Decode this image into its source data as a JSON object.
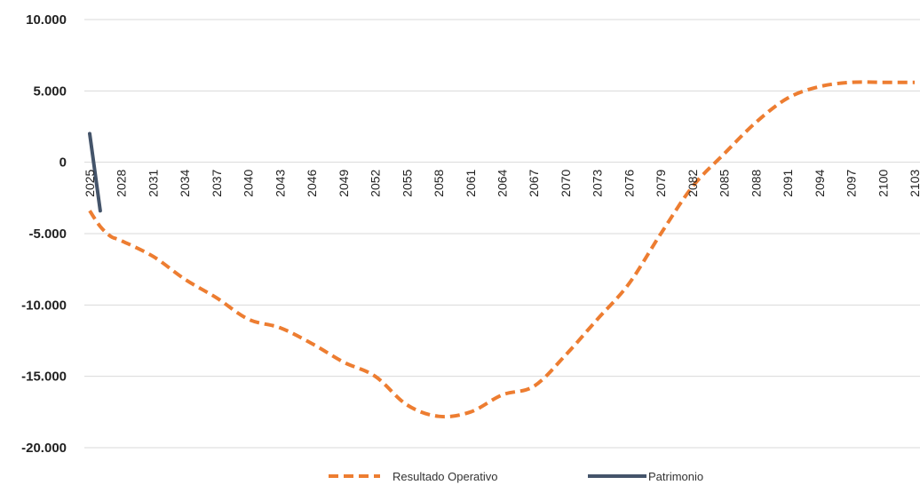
{
  "chart_data": {
    "type": "line",
    "x": [
      2025,
      2026,
      2027,
      2028,
      2031,
      2034,
      2037,
      2040,
      2043,
      2046,
      2049,
      2052,
      2055,
      2058,
      2061,
      2064,
      2067,
      2070,
      2073,
      2076,
      2079,
      2082,
      2085,
      2088,
      2091,
      2094,
      2097,
      2100,
      2103
    ],
    "x_ticks": [
      "2025",
      "2028",
      "2031",
      "2034",
      "2037",
      "2040",
      "2043",
      "2046",
      "2049",
      "2052",
      "2055",
      "2058",
      "2061",
      "2064",
      "2067",
      "2070",
      "2073",
      "2076",
      "2079",
      "2082",
      "2085",
      "2088",
      "2091",
      "2094",
      "2097",
      "2100",
      "2103"
    ],
    "y_ticks": [
      "10.000",
      "5.000",
      "0",
      "-5.000",
      "-10.000",
      "-15.000",
      "-20.000"
    ],
    "ylim": [
      -20000,
      10000
    ],
    "series": [
      {
        "name": "Resultado Operativo",
        "style": "dashed",
        "color": "#ed7d31",
        "x": [
          2025,
          2026,
          2027,
          2028,
          2031,
          2034,
          2037,
          2040,
          2043,
          2046,
          2049,
          2052,
          2055,
          2058,
          2061,
          2064,
          2067,
          2070,
          2073,
          2076,
          2079,
          2082,
          2085,
          2088,
          2091,
          2094,
          2097,
          2100,
          2103
        ],
        "values": [
          -3400,
          -4500,
          -5200,
          -5500,
          -6600,
          -8200,
          -9500,
          -11000,
          -11600,
          -12700,
          -14000,
          -15000,
          -17000,
          -17800,
          -17500,
          -16300,
          -15700,
          -13500,
          -11000,
          -8500,
          -5000,
          -1700,
          600,
          2800,
          4500,
          5300,
          5600,
          5600,
          5600
        ]
      },
      {
        "name": "Patrimonio",
        "style": "solid",
        "color": "#44546a",
        "x": [
          2025,
          2026
        ],
        "values": [
          2000,
          -3400
        ]
      }
    ],
    "legend": [
      "Resultado Operativo",
      "Patrimonio"
    ],
    "legend_position": "bottom",
    "grid": true
  }
}
